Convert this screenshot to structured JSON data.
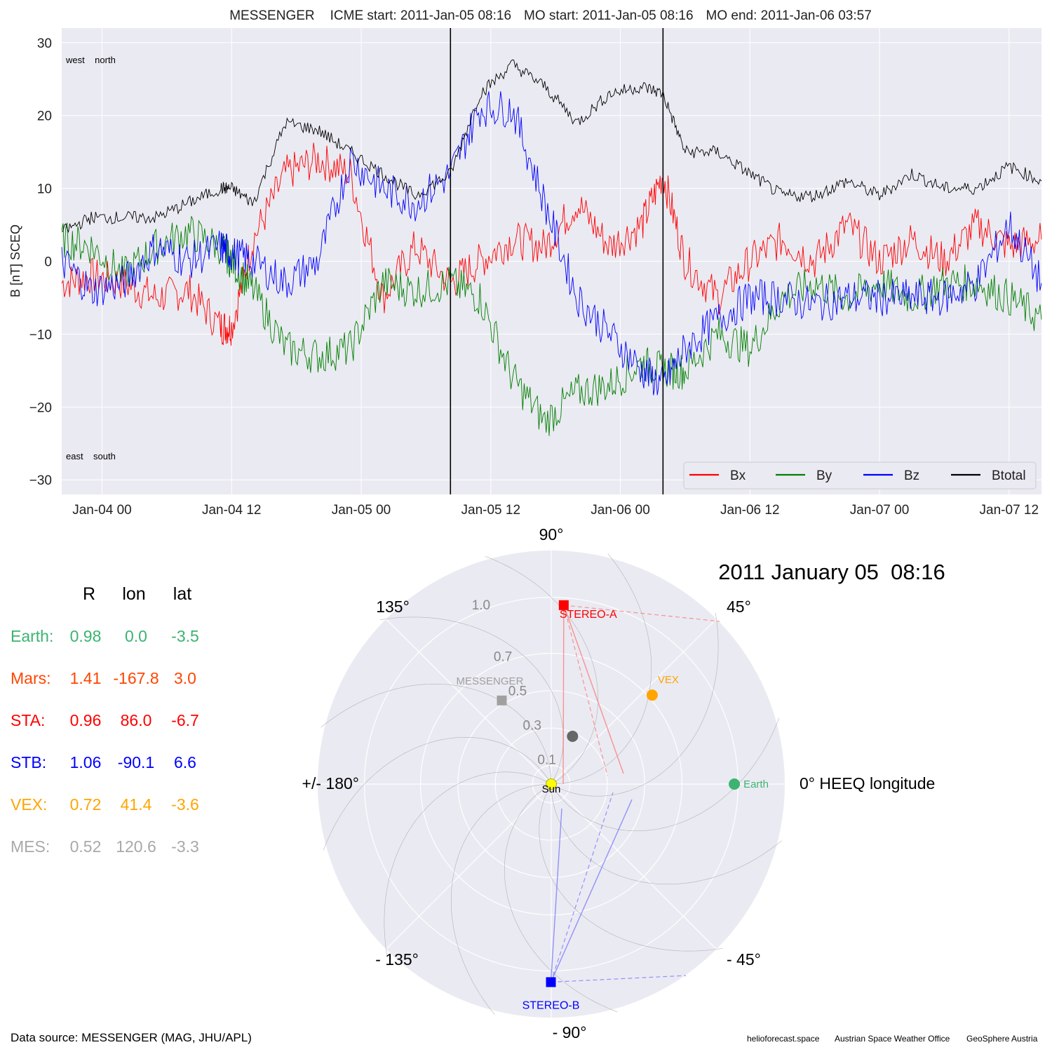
{
  "title": {
    "spacecraft": "MESSENGER",
    "icme_start": "ICME start: 2011-Jan-05 08:16",
    "mo_start": "MO start: 2011-Jan-05 08:16",
    "mo_end": "MO end: 2011-Jan-06 03:57"
  },
  "colors": {
    "bx": "#ff0000",
    "by": "#008000",
    "bz": "#0000ff",
    "btotal": "#000000",
    "axes_bg": "#eaeaf2"
  },
  "chart_data": [
    {
      "type": "line",
      "ylabel": "B [nT] SCEQ",
      "ylim": [
        -32,
        32
      ],
      "xlim": [
        "2011-01-03 20:16",
        "2011-01-07 15:00"
      ],
      "yticks": [
        "30",
        "20",
        "10",
        "0",
        "−10",
        "−20",
        "−30"
      ],
      "ytick_values": [
        30,
        20,
        10,
        0,
        -10,
        -20,
        -30
      ],
      "xticks": [
        "Jan-04 00",
        "Jan-04 12",
        "Jan-05 00",
        "Jan-05 12",
        "Jan-06 00",
        "Jan-06 12",
        "Jan-07 00",
        "Jan-07 12"
      ],
      "xtick_values": [
        "2011-01-04 00:00",
        "2011-01-04 12:00",
        "2011-01-05 00:00",
        "2011-01-05 12:00",
        "2011-01-06 00:00",
        "2011-01-06 12:00",
        "2011-01-07 00:00",
        "2011-01-07 12:00"
      ],
      "vlines": [
        "2011-01-05 08:16",
        "2011-01-06 03:57"
      ],
      "annotations": {
        "top": "west    north",
        "bottom": "east    south"
      },
      "legend_position": "lower-right",
      "series": [
        {
          "name": "Bx",
          "color": "#ff0000",
          "x": [
            "2011-01-03 20:16",
            "2011-01-03 23:00",
            "2011-01-04 02:00",
            "2011-01-04 05:00",
            "2011-01-04 08:00",
            "2011-01-04 11:00",
            "2011-01-04 12:00",
            "2011-01-04 14:00",
            "2011-01-04 17:00",
            "2011-01-04 20:00",
            "2011-01-04 23:00",
            "2011-01-05 02:00",
            "2011-01-05 05:00",
            "2011-01-05 08:16",
            "2011-01-05 11:00",
            "2011-01-05 14:00",
            "2011-01-05 17:00",
            "2011-01-05 20:00",
            "2011-01-05 23:00",
            "2011-01-06 02:00",
            "2011-01-06 03:57",
            "2011-01-06 06:00",
            "2011-01-06 09:00",
            "2011-01-06 12:00",
            "2011-01-06 15:00",
            "2011-01-06 18:00",
            "2011-01-06 21:00",
            "2011-01-07 00:00",
            "2011-01-07 03:00",
            "2011-01-07 06:00",
            "2011-01-07 09:00",
            "2011-01-07 12:00",
            "2011-01-07 15:00"
          ],
          "y": [
            -3,
            -2,
            -3,
            -5,
            -4,
            -9,
            -9,
            3,
            12,
            14,
            12,
            -5,
            2,
            -3,
            0,
            3,
            2,
            8,
            2,
            5,
            12,
            0,
            -5,
            0,
            3,
            0,
            5,
            0,
            3,
            0,
            5,
            2,
            3
          ]
        },
        {
          "name": "By",
          "color": "#008000",
          "x": [
            "2011-01-03 20:16",
            "2011-01-03 23:00",
            "2011-01-04 02:00",
            "2011-01-04 05:00",
            "2011-01-04 08:00",
            "2011-01-04 11:00",
            "2011-01-04 12:00",
            "2011-01-04 14:00",
            "2011-01-04 17:00",
            "2011-01-04 20:00",
            "2011-01-04 23:00",
            "2011-01-05 02:00",
            "2011-01-05 05:00",
            "2011-01-05 08:16",
            "2011-01-05 11:00",
            "2011-01-05 14:00",
            "2011-01-05 17:00",
            "2011-01-05 20:00",
            "2011-01-05 23:00",
            "2011-01-06 02:00",
            "2011-01-06 03:57",
            "2011-01-06 06:00",
            "2011-01-06 09:00",
            "2011-01-06 12:00",
            "2011-01-06 15:00",
            "2011-01-06 18:00",
            "2011-01-06 21:00",
            "2011-01-07 00:00",
            "2011-01-07 03:00",
            "2011-01-07 06:00",
            "2011-01-07 09:00",
            "2011-01-07 12:00",
            "2011-01-07 15:00"
          ],
          "y": [
            3,
            2,
            -2,
            2,
            4,
            2,
            0,
            -4,
            -12,
            -13,
            -12,
            -3,
            -4,
            -3,
            -5,
            -16,
            -22,
            -18,
            -17,
            -14,
            -15,
            -15,
            -10,
            -12,
            -5,
            -3,
            -5,
            -3,
            -5,
            -3,
            -3,
            -5,
            -8
          ]
        },
        {
          "name": "Bz",
          "color": "#0000ff",
          "x": [
            "2011-01-03 20:16",
            "2011-01-03 23:00",
            "2011-01-04 02:00",
            "2011-01-04 05:00",
            "2011-01-04 08:00",
            "2011-01-04 11:00",
            "2011-01-04 12:00",
            "2011-01-04 14:00",
            "2011-01-04 17:00",
            "2011-01-04 20:00",
            "2011-01-04 23:00",
            "2011-01-05 02:00",
            "2011-01-05 05:00",
            "2011-01-05 08:16",
            "2011-01-05 11:00",
            "2011-01-05 14:00",
            "2011-01-05 17:00",
            "2011-01-05 20:00",
            "2011-01-05 23:00",
            "2011-01-06 02:00",
            "2011-01-06 03:57",
            "2011-01-06 06:00",
            "2011-01-06 09:00",
            "2011-01-06 12:00",
            "2011-01-06 15:00",
            "2011-01-06 18:00",
            "2011-01-06 21:00",
            "2011-01-07 00:00",
            "2011-01-07 03:00",
            "2011-01-07 06:00",
            "2011-01-07 09:00",
            "2011-01-07 12:00",
            "2011-01-07 15:00"
          ],
          "y": [
            0,
            -4,
            -3,
            2,
            0,
            2,
            1,
            0,
            -3,
            0,
            14,
            10,
            8,
            12,
            21,
            21,
            8,
            -5,
            -10,
            -15,
            -17,
            -12,
            -8,
            -5,
            -5,
            -6,
            -5,
            -5,
            -5,
            -5,
            -3,
            5,
            -3
          ]
        },
        {
          "name": "Btotal",
          "color": "#000000",
          "x": [
            "2011-01-03 20:16",
            "2011-01-03 23:00",
            "2011-01-04 02:00",
            "2011-01-04 05:00",
            "2011-01-04 08:00",
            "2011-01-04 11:00",
            "2011-01-04 12:00",
            "2011-01-04 14:00",
            "2011-01-04 17:00",
            "2011-01-04 20:00",
            "2011-01-04 23:00",
            "2011-01-05 02:00",
            "2011-01-05 05:00",
            "2011-01-05 08:16",
            "2011-01-05 11:00",
            "2011-01-05 14:00",
            "2011-01-05 17:00",
            "2011-01-05 20:00",
            "2011-01-05 23:00",
            "2011-01-06 02:00",
            "2011-01-06 03:57",
            "2011-01-06 06:00",
            "2011-01-06 09:00",
            "2011-01-06 12:00",
            "2011-01-06 15:00",
            "2011-01-06 18:00",
            "2011-01-06 21:00",
            "2011-01-07 00:00",
            "2011-01-07 03:00",
            "2011-01-07 06:00",
            "2011-01-07 09:00",
            "2011-01-07 12:00",
            "2011-01-07 15:00"
          ],
          "y": [
            4,
            6,
            6,
            6,
            8,
            10,
            10,
            8,
            19,
            18,
            15,
            12,
            9,
            12,
            23,
            27,
            24,
            19,
            23,
            24,
            23,
            15,
            15,
            12,
            9,
            9,
            11,
            9,
            12,
            10,
            10,
            13,
            11
          ]
        }
      ]
    },
    {
      "type": "scatter",
      "subtype": "polar",
      "date_label": "2011 January 05  08:16",
      "rlim": [
        0,
        1.25
      ],
      "rticks": [
        0.1,
        0.3,
        0.5,
        0.7,
        1.0
      ],
      "rtick_labels": [
        "0.1",
        "0.3",
        "0.5",
        "0.7",
        "1.0"
      ],
      "angle_labels": {
        "a0": "0° HEEQ longitude",
        "a45": "45°",
        "a90": "90°",
        "a135": "135°",
        "a180": "+/- 180°",
        "am135": "- 135°",
        "am90": "- 90°",
        "am45": "- 45°"
      },
      "points": [
        {
          "name": "Sun",
          "r": 0.0,
          "lon": 0.0,
          "color": "#ffff00",
          "marker": "circle"
        },
        {
          "name": "Earth",
          "r": 0.98,
          "lon": 0.0,
          "color": "#3cb371",
          "marker": "circle"
        },
        {
          "name": "VEX",
          "r": 0.72,
          "lon": 41.4,
          "color": "#ffa500",
          "marker": "circle"
        },
        {
          "name": "STEREO-A",
          "r": 0.96,
          "lon": 86.0,
          "color": "#ff0000",
          "marker": "square"
        },
        {
          "name": "STEREO-B",
          "r": 1.06,
          "lon": -90.1,
          "color": "#0000ff",
          "marker": "square"
        },
        {
          "name": "MESSENGER",
          "r": 0.52,
          "lon": 120.6,
          "color": "#a0a0a0",
          "marker": "square"
        },
        {
          "name": "",
          "r": 0.28,
          "lon": 66.0,
          "color": "#666666",
          "marker": "circle"
        }
      ],
      "labels": {
        "sun": "Sun",
        "earth": "Earth",
        "vex": "VEX",
        "sta": "STEREO-A",
        "stb": "STEREO-B",
        "mes": "MESSENGER"
      }
    }
  ],
  "positions_table": {
    "headers": [
      "R",
      "lon",
      "lat"
    ],
    "rows": [
      {
        "name": "Earth:",
        "r": "0.98",
        "lon": "0.0",
        "lat": "-3.5",
        "color": "#3cb371"
      },
      {
        "name": "Mars:",
        "r": "1.41",
        "lon": "-167.8",
        "lat": "3.0",
        "color": "#ff4500"
      },
      {
        "name": "STA:",
        "r": "0.96",
        "lon": "86.0",
        "lat": "-6.7",
        "color": "#ff0000"
      },
      {
        "name": "STB:",
        "r": "1.06",
        "lon": "-90.1",
        "lat": "6.6",
        "color": "#0000ff"
      },
      {
        "name": "VEX:",
        "r": "0.72",
        "lon": "41.4",
        "lat": "-3.6",
        "color": "#ffa500"
      },
      {
        "name": "MES:",
        "r": "0.52",
        "lon": "120.6",
        "lat": "-3.3",
        "color": "#a9a9a9"
      }
    ]
  },
  "footer": {
    "data_source": "Data source: MESSENGER (MAG, JHU/APL)",
    "credit1": "helioforecast.space",
    "credit2": "Austrian Space Weather Office",
    "credit3": "GeoSphere Austria"
  }
}
